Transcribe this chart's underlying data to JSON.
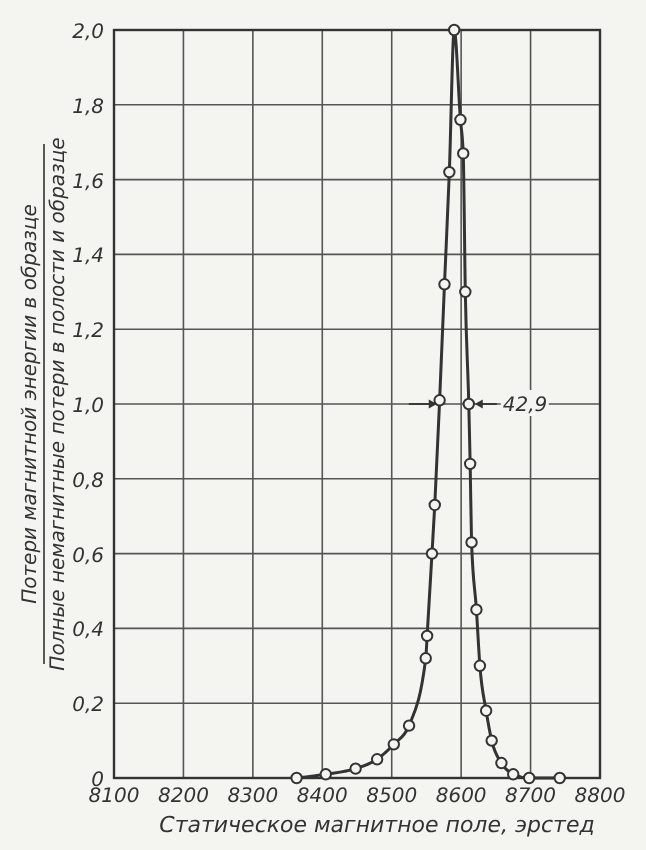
{
  "chart_data": {
    "type": "line",
    "xlabel": "Статическое магнитное поле, эрстед",
    "ylabel": "Потери магнитной энергии в образце\nПолные немагнитные потери в полости и образце",
    "x": [
      8363,
      8405,
      8448,
      8479,
      8503,
      8525,
      8549,
      8551,
      8558,
      8562,
      8569,
      8576,
      8583,
      8590,
      8599,
      8603,
      8606,
      8611,
      8613,
      8615,
      8622,
      8627,
      8636,
      8644,
      8658,
      8675,
      8698,
      8742
    ],
    "series": [
      {
        "color": "#333333",
        "values": [
          0,
          0.01,
          0.025,
          0.05,
          0.09,
          0.14,
          0.32,
          0.38,
          0.6,
          0.73,
          1.01,
          1.32,
          1.62,
          2.0,
          1.76,
          1.67,
          1.3,
          1.0,
          0.84,
          0.63,
          0.45,
          0.3,
          0.18,
          0.1,
          0.04,
          0.01,
          0,
          0
        ]
      }
    ],
    "xlim": [
      8100,
      8800
    ],
    "xticks": [
      8100,
      8200,
      8300,
      8400,
      8500,
      8600,
      8700,
      8800
    ],
    "ylim": [
      0,
      2
    ],
    "yticks": [
      0,
      {
        "value": 0.2,
        "label": "0,2"
      },
      {
        "value": 0.4,
        "label": "0,4"
      },
      {
        "value": 0.6,
        "label": "0,6"
      },
      {
        "value": 0.8,
        "label": "0,8"
      },
      {
        "value": 1,
        "label": "1,0"
      },
      {
        "value": 1.2,
        "label": "1,2"
      },
      {
        "value": 1.4,
        "label": "1,4"
      },
      {
        "value": 1.6,
        "label": "1,6"
      },
      {
        "value": 1.8,
        "label": "1,8"
      },
      {
        "value": 2,
        "label": "2,0"
      }
    ],
    "annotations": [
      {
        "text": "42,9",
        "x": 8611,
        "y": 1.0
      }
    ],
    "grid": true,
    "marker": "circle",
    "line_style": "solid"
  }
}
